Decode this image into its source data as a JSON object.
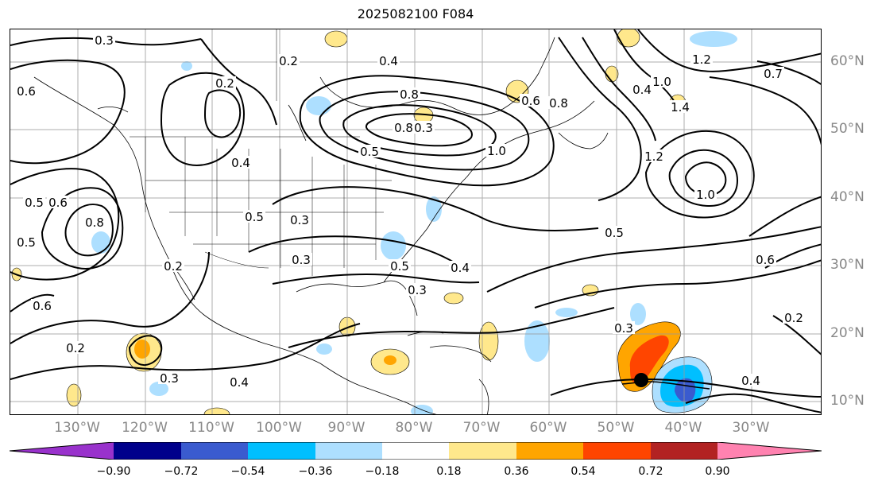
{
  "title": "2025082100 F084",
  "map": {
    "longitude_labels": [
      "130°W",
      "120°W",
      "110°W",
      "100°W",
      "90°W",
      "80°W",
      "70°W",
      "60°W",
      "50°W",
      "40°W",
      "30°W"
    ],
    "latitude_labels": [
      "60°N",
      "50°N",
      "40°N",
      "30°N",
      "20°N",
      "10°N"
    ],
    "contour_labels": [
      "0.3",
      "0.4",
      "0.8",
      "1.2",
      "1.0",
      "0.7",
      "0.6",
      "0.2",
      "0.5",
      "0.4",
      "0.2",
      "0.5",
      "0.3",
      "0.3",
      "0.2",
      "0.5",
      "0.4",
      "0.3",
      "0.2",
      "0.6",
      "0.8",
      "0.3",
      "0.4",
      "0.5",
      "0.3",
      "0.8",
      "1.0",
      "1.2",
      "1.0",
      "0.8",
      "0.6",
      "0.4",
      "1.4",
      "0.5",
      "0.6",
      "0.2",
      "0.4",
      "0.5",
      "0.6",
      "0.3"
    ],
    "storm_marker": "black-dot"
  },
  "colorbar": {
    "tick_labels": [
      "−0.90",
      "−0.72",
      "−0.54",
      "−0.36",
      "−0.18",
      "0.18",
      "0.36",
      "0.54",
      "0.72",
      "0.90"
    ],
    "colors": [
      "#9932CC",
      "#00008B",
      "#3A5BCF",
      "#00BFFF",
      "#ADDFFF",
      "#FFFFFF",
      "#FFE88C",
      "#FFA500",
      "#FF4500",
      "#B22222",
      "#FF82B0"
    ]
  }
}
